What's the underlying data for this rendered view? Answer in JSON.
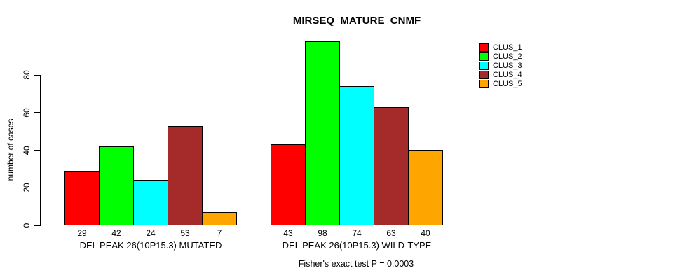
{
  "chart_data": {
    "type": "bar",
    "title": "MIRSEQ_MATURE_CNMF",
    "xlabel": "",
    "ylabel": "number of cases",
    "categories": [
      "DEL PEAK 26(10P15.3) MUTATED",
      "DEL PEAK 26(10P15.3) WILD-TYPE"
    ],
    "series": [
      {
        "name": "CLUS_1",
        "color": "#FF0000",
        "values": [
          29,
          43
        ]
      },
      {
        "name": "CLUS_2",
        "color": "#00FF00",
        "values": [
          42,
          98
        ]
      },
      {
        "name": "CLUS_3",
        "color": "#00FFFF",
        "values": [
          24,
          74
        ]
      },
      {
        "name": "CLUS_4",
        "color": "#A52A2A",
        "values": [
          53,
          63
        ]
      },
      {
        "name": "CLUS_5",
        "color": "#FFA500",
        "values": [
          7,
          40
        ]
      }
    ],
    "yticks": [
      0,
      20,
      40,
      60,
      80
    ],
    "ylim": [
      0,
      100
    ],
    "bar_value_labels_shown": true,
    "grid": false,
    "legend_position": "right",
    "annotation": "Fisher's exact test P = 0.0003"
  }
}
